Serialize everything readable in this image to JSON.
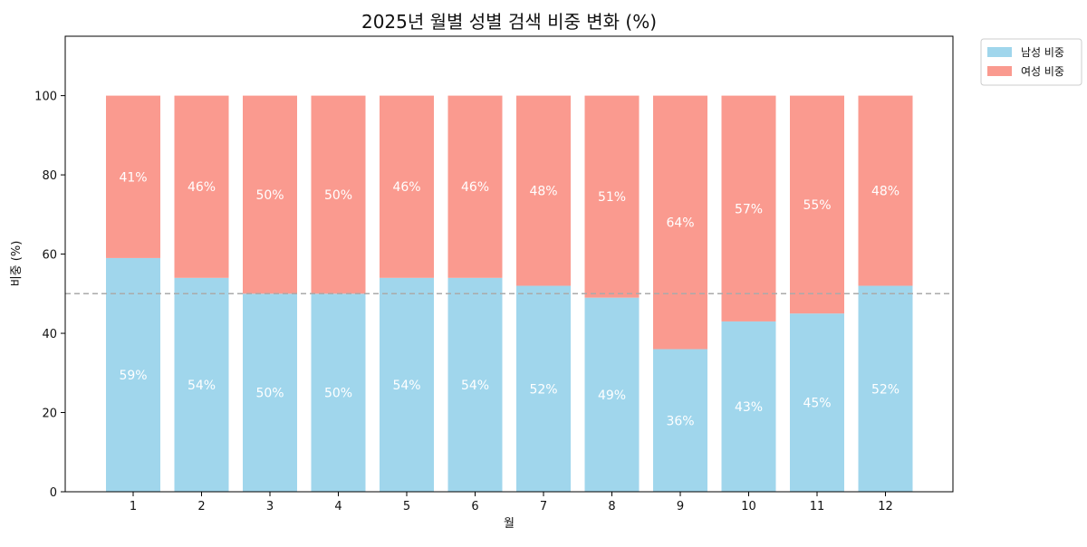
{
  "chart_data": {
    "type": "bar",
    "stacked": true,
    "title": "2025년 월별 성별 검색 비중 변화 (%)",
    "xlabel": "월",
    "ylabel": "비중 (%)",
    "categories": [
      "1",
      "2",
      "3",
      "4",
      "5",
      "6",
      "7",
      "8",
      "9",
      "10",
      "11",
      "12"
    ],
    "series": [
      {
        "name": "남성 비중",
        "color": "#a0d6ec",
        "values": [
          59,
          54,
          50,
          50,
          54,
          54,
          52,
          49,
          36,
          43,
          45,
          52
        ],
        "labels": [
          "59%",
          "54%",
          "50%",
          "50%",
          "54%",
          "54%",
          "52%",
          "49%",
          "36%",
          "43%",
          "45%",
          "52%"
        ]
      },
      {
        "name": "여성 비중",
        "color": "#fa9a8f",
        "values": [
          41,
          46,
          50,
          50,
          46,
          46,
          48,
          51,
          64,
          57,
          55,
          48
        ],
        "labels": [
          "41%",
          "46%",
          "50%",
          "50%",
          "46%",
          "46%",
          "48%",
          "51%",
          "64%",
          "57%",
          "55%",
          "48%"
        ]
      }
    ],
    "ylim": [
      0,
      115
    ],
    "yticks": [
      0,
      20,
      40,
      60,
      80,
      100
    ],
    "reference_line": 50,
    "legend_position": "outside-top-right",
    "grid": false
  }
}
